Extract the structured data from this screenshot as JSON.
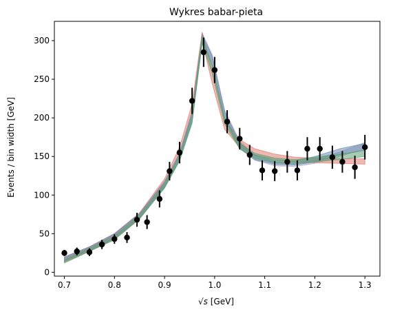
{
  "chart_data": {
    "type": "scatter",
    "title": "Wykres babar-pieta",
    "xlabel_prefix": "√s",
    "xlabel_suffix": " [GeV]",
    "ylabel": "Events / bin width [GeV]",
    "xlim": [
      0.68,
      1.33
    ],
    "ylim": [
      -5,
      325
    ],
    "xticks": [
      0.7,
      0.8,
      0.9,
      1.0,
      1.1,
      1.2,
      1.3
    ],
    "xtick_labels": [
      "0.7",
      "0.8",
      "0.9",
      "1.0",
      "1.1",
      "1.2",
      "1.3"
    ],
    "yticks": [
      0,
      50,
      100,
      150,
      200,
      250,
      300
    ],
    "ytick_labels": [
      "0",
      "50",
      "100",
      "150",
      "200",
      "250",
      "300"
    ],
    "grid": false,
    "data_points": {
      "color": "#000000",
      "x": [
        0.7,
        0.725,
        0.75,
        0.775,
        0.8,
        0.825,
        0.845,
        0.865,
        0.89,
        0.91,
        0.93,
        0.955,
        0.978,
        1.0,
        1.025,
        1.05,
        1.07,
        1.095,
        1.12,
        1.145,
        1.165,
        1.185,
        1.21,
        1.235,
        1.255,
        1.28,
        1.3
      ],
      "y": [
        25,
        27,
        26,
        36,
        43,
        45,
        68,
        65,
        95,
        131,
        155,
        222,
        285,
        262,
        195,
        173,
        152,
        132,
        131,
        143,
        132,
        160,
        160,
        149,
        143,
        136,
        162
      ],
      "err": [
        4,
        5,
        5,
        6,
        6,
        7,
        9,
        9,
        11,
        12,
        14,
        17,
        19,
        17,
        15,
        14,
        13,
        13,
        13,
        14,
        13,
        15,
        15,
        15,
        14,
        15,
        16
      ]
    },
    "model_bands": [
      {
        "color": "#a8a3c8",
        "x": [
          0.7,
          0.75,
          0.8,
          0.85,
          0.9,
          0.93,
          0.955,
          0.975,
          0.995,
          1.02,
          1.05,
          1.08,
          1.12,
          1.16,
          1.2,
          1.25,
          1.3
        ],
        "lo": [
          14,
          27,
          43,
          70,
          110,
          145,
          195,
          300,
          272,
          200,
          162,
          145,
          138,
          137,
          141,
          150,
          160
        ],
        "hi": [
          19,
          32,
          49,
          76,
          118,
          154,
          208,
          310,
          282,
          210,
          170,
          152,
          143,
          141,
          146,
          156,
          168
        ]
      },
      {
        "color": "#e07b72",
        "x": [
          0.7,
          0.75,
          0.8,
          0.85,
          0.9,
          0.93,
          0.955,
          0.975,
          0.995,
          1.02,
          1.05,
          1.08,
          1.12,
          1.16,
          1.2,
          1.25,
          1.3
        ],
        "lo": [
          13,
          27,
          43,
          69,
          111,
          150,
          205,
          300,
          245,
          185,
          162,
          152,
          146,
          143,
          142,
          141,
          140
        ],
        "hi": [
          19,
          33,
          50,
          77,
          121,
          162,
          218,
          311,
          262,
          198,
          172,
          160,
          153,
          149,
          148,
          147,
          147
        ]
      },
      {
        "color": "#6c8db0",
        "x": [
          0.7,
          0.75,
          0.8,
          0.85,
          0.9,
          0.93,
          0.955,
          0.975,
          0.995,
          1.02,
          1.05,
          1.08,
          1.12,
          1.16,
          1.2,
          1.25,
          1.3
        ],
        "lo": [
          15,
          28,
          44,
          70,
          110,
          146,
          196,
          298,
          268,
          198,
          160,
          146,
          140,
          139,
          143,
          152,
          158
        ],
        "hi": [
          20,
          33,
          50,
          76,
          117,
          154,
          207,
          308,
          280,
          208,
          168,
          152,
          145,
          144,
          150,
          160,
          167
        ]
      },
      {
        "color": "#5da372",
        "x": [
          0.7,
          0.75,
          0.8,
          0.85,
          0.9,
          0.93,
          0.955,
          0.975,
          0.995,
          1.02,
          1.05,
          1.08,
          1.12,
          1.16,
          1.2,
          1.25,
          1.3
        ],
        "lo": [
          12,
          27,
          42,
          69,
          109,
          144,
          193,
          296,
          258,
          192,
          160,
          148,
          142,
          141,
          143,
          146,
          150
        ],
        "hi": [
          16,
          31,
          47,
          74,
          115,
          151,
          202,
          305,
          268,
          200,
          167,
          154,
          148,
          146,
          149,
          153,
          158
        ]
      }
    ]
  }
}
